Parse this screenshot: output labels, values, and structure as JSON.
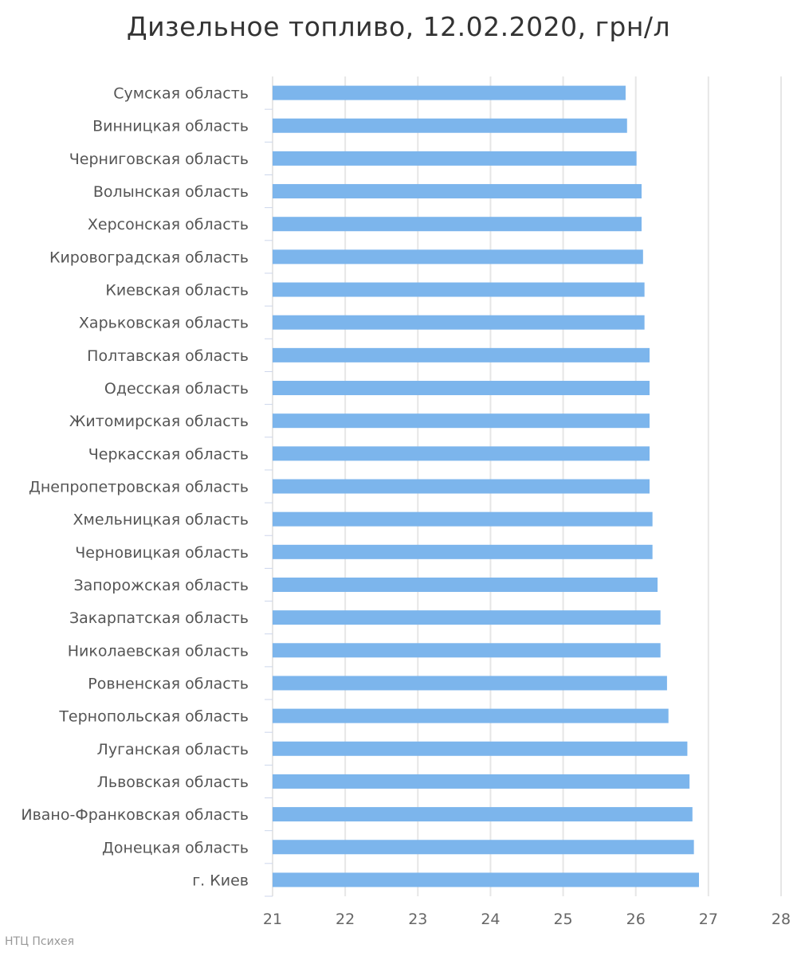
{
  "chart_data": {
    "type": "bar",
    "orientation": "horizontal",
    "title": "Дизельное топливо, 12.02.2020, грн/л",
    "xlabel": "",
    "ylabel": "",
    "xlim": [
      21,
      28
    ],
    "ticks": [
      "21",
      "22",
      "23",
      "24",
      "25",
      "26",
      "27",
      "28"
    ],
    "grid": true,
    "bar_color": "#7cb5ec",
    "categories": [
      "Сумская область",
      "Винницкая область",
      "Черниговская область",
      "Волынская область",
      "Херсонская область",
      "Кировоградская область",
      "Киевская область",
      "Харьковская область",
      "Полтавская область",
      "Одесская область",
      "Житомирская область",
      "Черкасская область",
      "Днепропетровская область",
      "Хмельницкая область",
      "Черновицкая область",
      "Запорожская область",
      "Закарпатская область",
      "Николаевская область",
      "Ровненская область",
      "Тернопольская область",
      "Луганская область",
      "Львовская область",
      "Ивано-Франковская область",
      "Донецкая область",
      "г. Киев"
    ],
    "values": [
      25.86,
      25.88,
      26.01,
      26.08,
      26.08,
      26.1,
      26.12,
      26.12,
      26.19,
      26.19,
      26.19,
      26.19,
      26.19,
      26.23,
      26.23,
      26.3,
      26.34,
      26.34,
      26.43,
      26.45,
      26.71,
      26.74,
      26.78,
      26.8,
      26.87
    ]
  },
  "credit": "НТЦ Психея"
}
